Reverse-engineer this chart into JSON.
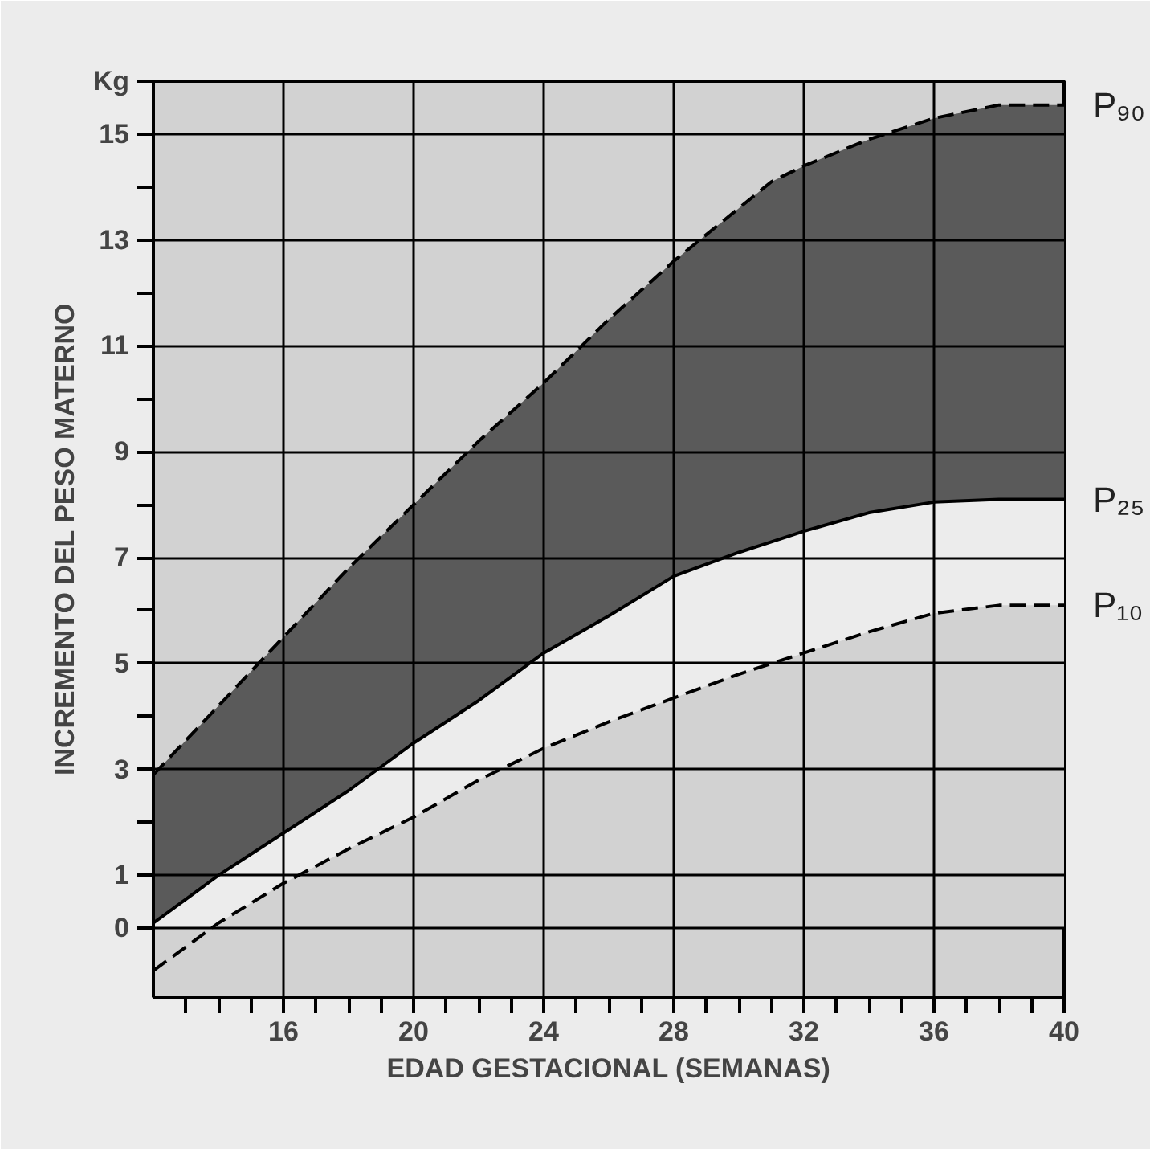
{
  "chart_data": {
    "type": "area",
    "xlabel": "EDAD GESTACIONAL (SEMANAS)",
    "ylabel": "INCREMENTO DEL PESO MATERNO",
    "x": [
      12,
      14,
      16,
      18,
      20,
      22,
      24,
      26,
      28,
      30,
      31,
      32,
      34,
      36,
      38,
      40
    ],
    "series": [
      {
        "name": "P₉₀",
        "color": "#5a5a5a",
        "line_style": "dashed",
        "values": [
          2.9,
          4.2,
          5.5,
          6.8,
          8.0,
          9.2,
          10.3,
          11.5,
          12.6,
          13.6,
          14.1,
          14.4,
          14.9,
          15.3,
          15.55,
          15.55
        ]
      },
      {
        "name": "P₂₅",
        "color": "#ececec",
        "line_style": "solid",
        "values": [
          0.1,
          1.0,
          1.8,
          2.6,
          3.5,
          4.3,
          5.2,
          5.9,
          6.65,
          7.1,
          7.3,
          7.5,
          7.85,
          8.05,
          8.1,
          8.1
        ]
      },
      {
        "name": "P₁₀",
        "color": "#d2d2d2",
        "line_style": "dashed",
        "values": [
          -0.8,
          0.1,
          0.85,
          1.5,
          2.1,
          2.8,
          3.4,
          3.9,
          4.35,
          4.8,
          5.0,
          5.2,
          5.6,
          5.95,
          6.1,
          6.1
        ]
      }
    ],
    "xlim": [
      12,
      40
    ],
    "ylim": [
      -1.3,
      16
    ],
    "xticks": [
      {
        "value": 13,
        "label": null
      },
      {
        "value": 14,
        "label": null
      },
      {
        "value": 15,
        "label": null
      },
      16,
      {
        "value": 17,
        "label": null
      },
      {
        "value": 18,
        "label": null
      },
      {
        "value": 19,
        "label": null
      },
      20,
      {
        "value": 21,
        "label": null
      },
      {
        "value": 22,
        "label": null
      },
      {
        "value": 23,
        "label": null
      },
      24,
      {
        "value": 25,
        "label": null
      },
      {
        "value": 26,
        "label": null
      },
      {
        "value": 27,
        "label": null
      },
      28,
      {
        "value": 29,
        "label": null
      },
      {
        "value": 30,
        "label": null
      },
      {
        "value": 31,
        "label": null
      },
      32,
      {
        "value": 33,
        "label": null
      },
      {
        "value": 34,
        "label": null
      },
      {
        "value": 35,
        "label": null
      },
      36,
      {
        "value": 37,
        "label": null
      },
      {
        "value": 38,
        "label": null
      },
      {
        "value": 39,
        "label": null
      },
      40
    ],
    "yticks": [
      0,
      1,
      {
        "value": 2,
        "label": null
      },
      3,
      {
        "value": 4,
        "label": null
      },
      5,
      {
        "value": 6,
        "label": null
      },
      7,
      {
        "value": 8,
        "label": null
      },
      9,
      {
        "value": 10,
        "label": null
      },
      11,
      {
        "value": 12,
        "label": null
      },
      13,
      {
        "value": 14,
        "label": null
      },
      15,
      {
        "value": 16,
        "label": "Kg"
      }
    ],
    "grid": true
  }
}
